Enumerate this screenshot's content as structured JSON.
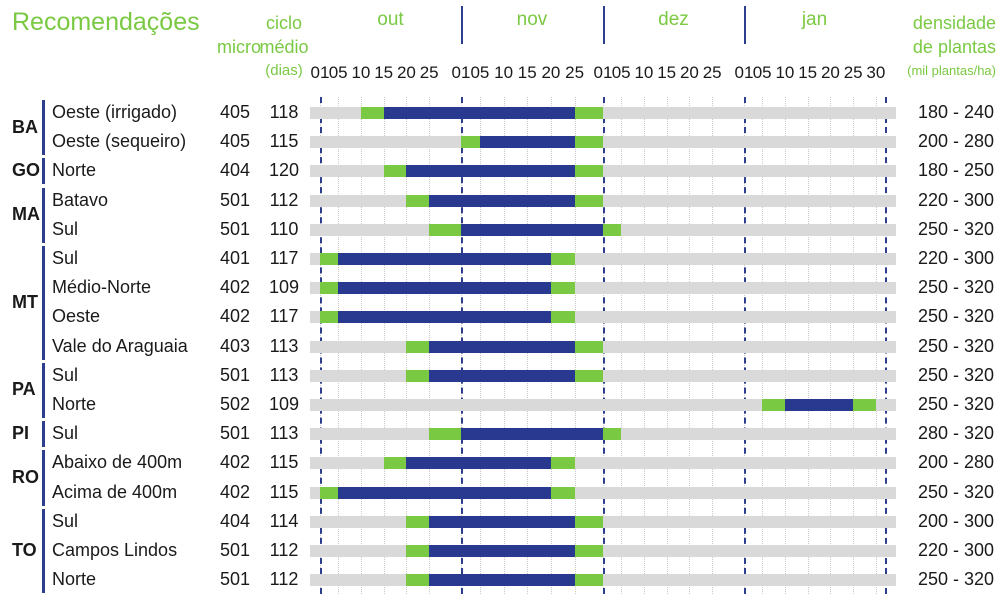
{
  "title": "Recomendações",
  "header": {
    "micro": "micro",
    "ciclo_line1": "ciclo",
    "ciclo_line2": "médio",
    "ciclo_line3": "(dias)",
    "dens_line1": "densidade",
    "dens_line2": "de plantas",
    "dens_unit": "(mil plantas/ha)"
  },
  "months": [
    "out",
    "nov",
    "dez",
    "jan"
  ],
  "ticks": [
    "01",
    "05",
    "10",
    "15",
    "20",
    "25",
    "01",
    "05",
    "10",
    "15",
    "20",
    "25",
    "01",
    "05",
    "10",
    "15",
    "20",
    "25",
    "01",
    "05",
    "10",
    "15",
    "20",
    "25",
    "30"
  ],
  "colors": {
    "sowing_window": "#2a3990",
    "edge": "#7ac943",
    "track": "#d9d9d9",
    "accent": "#7ac943"
  },
  "states": [
    {
      "code": "BA",
      "rows": [
        0,
        1
      ]
    },
    {
      "code": "GO",
      "rows": [
        2
      ]
    },
    {
      "code": "MA",
      "rows": [
        3,
        4
      ]
    },
    {
      "code": "MT",
      "rows": [
        5,
        6,
        7,
        8
      ]
    },
    {
      "code": "PA",
      "rows": [
        9,
        10
      ]
    },
    {
      "code": "PI",
      "rows": [
        11
      ]
    },
    {
      "code": "RO",
      "rows": [
        12,
        13
      ]
    },
    {
      "code": "TO",
      "rows": [
        14,
        15,
        16
      ]
    }
  ],
  "rows": [
    {
      "region": "Oeste (irrigado)",
      "micro": "405",
      "ciclo": "118",
      "dens": "180 - 240",
      "window": {
        "green_start": "out 10",
        "blue_start": "out 15",
        "blue_end": "nov 25",
        "green_end": "dez 01"
      }
    },
    {
      "region": "Oeste (sequeiro)",
      "micro": "405",
      "ciclo": "115",
      "dens": "200 - 280",
      "window": {
        "green_start": "nov 01",
        "blue_start": "nov 05",
        "blue_end": "nov 25",
        "green_end": "dez 01"
      }
    },
    {
      "region": "Norte",
      "micro": "404",
      "ciclo": "120",
      "dens": "180 - 250",
      "window": {
        "green_start": "out 15",
        "blue_start": "out 20",
        "blue_end": "nov 25",
        "green_end": "dez 01"
      }
    },
    {
      "region": "Batavo",
      "micro": "501",
      "ciclo": "112",
      "dens": "220 - 300",
      "window": {
        "green_start": "out 20",
        "blue_start": "out 25",
        "blue_end": "nov 25",
        "green_end": "dez 01"
      }
    },
    {
      "region": "Sul",
      "micro": "501",
      "ciclo": "110",
      "dens": "250 - 320",
      "window": {
        "green_start": "out 25",
        "blue_start": "nov 01",
        "blue_end": "dez 01",
        "green_end": "dez 05"
      }
    },
    {
      "region": "Sul",
      "micro": "401",
      "ciclo": "117",
      "dens": "220 - 300",
      "window": {
        "green_start": "out 01",
        "blue_start": "out 05",
        "blue_end": "nov 20",
        "green_end": "nov 25"
      }
    },
    {
      "region": "Médio-Norte",
      "micro": "402",
      "ciclo": "109",
      "dens": "250 - 320",
      "window": {
        "green_start": "out 01",
        "blue_start": "out 05",
        "blue_end": "nov 20",
        "green_end": "nov 25"
      }
    },
    {
      "region": "Oeste",
      "micro": "402",
      "ciclo": "117",
      "dens": "250 - 320",
      "window": {
        "green_start": "out 01",
        "blue_start": "out 05",
        "blue_end": "nov 20",
        "green_end": "nov 25"
      }
    },
    {
      "region": "Vale do Araguaia",
      "micro": "403",
      "ciclo": "113",
      "dens": "250 - 320",
      "window": {
        "green_start": "out 20",
        "blue_start": "out 25",
        "blue_end": "nov 25",
        "green_end": "dez 01"
      }
    },
    {
      "region": "Sul",
      "micro": "501",
      "ciclo": "113",
      "dens": "250 - 320",
      "window": {
        "green_start": "out 20",
        "blue_start": "out 25",
        "blue_end": "nov 25",
        "green_end": "dez 01"
      }
    },
    {
      "region": "Norte",
      "micro": "502",
      "ciclo": "109",
      "dens": "250 - 320",
      "window": {
        "green_start": "jan 05",
        "blue_start": "jan 10",
        "blue_end": "jan 25",
        "green_end": "jan 30"
      }
    },
    {
      "region": "Sul",
      "micro": "501",
      "ciclo": "113",
      "dens": "280 - 320",
      "window": {
        "green_start": "out 25",
        "blue_start": "nov 01",
        "blue_end": "dez 01",
        "green_end": "dez 05"
      }
    },
    {
      "region": "Abaixo de 400m",
      "micro": "402",
      "ciclo": "115",
      "dens": "200 - 280",
      "window": {
        "green_start": "out 15",
        "blue_start": "out 20",
        "blue_end": "nov 20",
        "green_end": "nov 25"
      }
    },
    {
      "region": "Acima de 400m",
      "micro": "402",
      "ciclo": "115",
      "dens": "250 - 320",
      "window": {
        "green_start": "out 01",
        "blue_start": "out 05",
        "blue_end": "nov 20",
        "green_end": "nov 25"
      }
    },
    {
      "region": "Sul",
      "micro": "404",
      "ciclo": "114",
      "dens": "200 - 300",
      "window": {
        "green_start": "out 20",
        "blue_start": "out 25",
        "blue_end": "nov 25",
        "green_end": "dez 01"
      }
    },
    {
      "region": "Campos Lindos",
      "micro": "501",
      "ciclo": "112",
      "dens": "220 - 300",
      "window": {
        "green_start": "out 20",
        "blue_start": "out 25",
        "blue_end": "nov 25",
        "green_end": "dez 01"
      }
    },
    {
      "region": "Norte",
      "micro": "501",
      "ciclo": "112",
      "dens": "250 - 320",
      "window": {
        "green_start": "out 20",
        "blue_start": "out 25",
        "blue_end": "nov 25",
        "green_end": "dez 01"
      }
    }
  ]
}
